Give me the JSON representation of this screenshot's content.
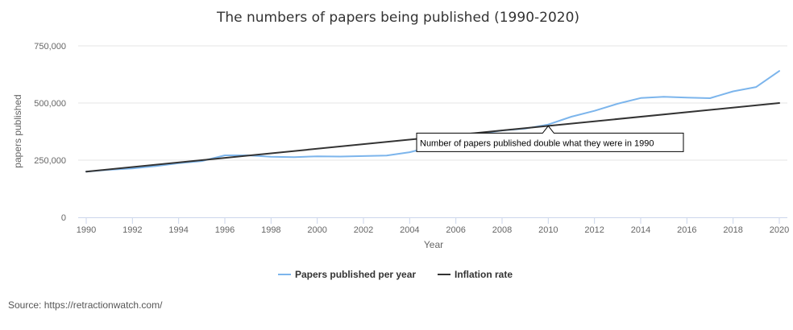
{
  "chart_data": {
    "type": "line",
    "title": "The numbers of papers being published (1990-2020)",
    "xlabel": "Year",
    "ylabel": "papers published",
    "xlim": [
      1990,
      2020
    ],
    "ylim": [
      0,
      750000
    ],
    "x_ticks": [
      "1990",
      "1992",
      "1994",
      "1996",
      "1998",
      "2000",
      "2002",
      "2004",
      "2006",
      "2008",
      "2010",
      "2012",
      "2014",
      "2016",
      "2018",
      "2020"
    ],
    "y_ticks": [
      "0",
      "250,000",
      "500,000",
      "750,000"
    ],
    "grid": "horizontal",
    "legend_position": "bottom-center",
    "series": [
      {
        "name": "Papers published per year",
        "color": "#7cb5ec",
        "x": [
          1990,
          1991,
          1992,
          1993,
          1994,
          1995,
          1996,
          1997,
          1998,
          1999,
          2000,
          2001,
          2002,
          2003,
          2004,
          2005,
          2006,
          2007,
          2008,
          2009,
          2010,
          2011,
          2012,
          2013,
          2014,
          2015,
          2016,
          2017,
          2018,
          2019,
          2020
        ],
        "y": [
          200000,
          208000,
          214000,
          224000,
          237000,
          246000,
          271000,
          271000,
          265000,
          263000,
          267000,
          266000,
          268000,
          270000,
          285000,
          310000,
          354000,
          365000,
          380000,
          388000,
          406000,
          440000,
          466000,
          497000,
          522000,
          527000,
          524000,
          521000,
          551000,
          570000,
          640000
        ]
      },
      {
        "name": "Inflation rate",
        "color": "#333333",
        "x": [
          1990,
          2020
        ],
        "y": [
          200000,
          500000
        ]
      }
    ],
    "annotations": [
      {
        "text": "Number of papers published double what they were in 1990",
        "x": 2010,
        "y": 400000
      }
    ]
  },
  "source": "Source: https://retractionwatch.com/"
}
